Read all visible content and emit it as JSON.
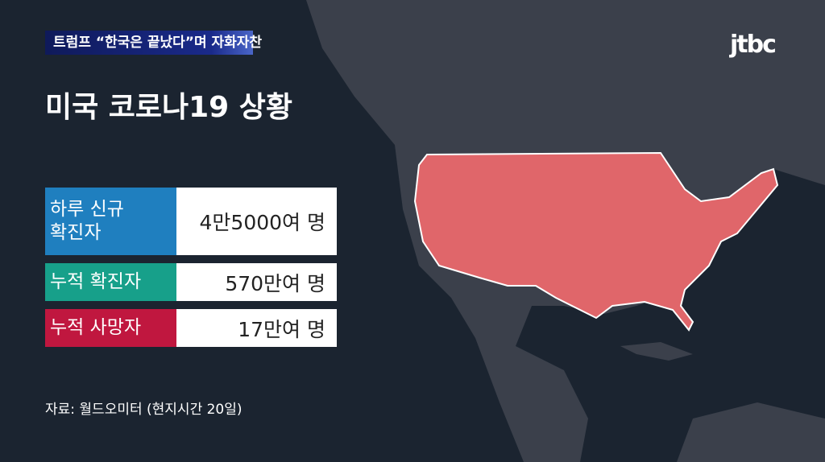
{
  "ticker": {
    "headline": "트럼프 “한국은 끝났다”며 자화자찬"
  },
  "broadcaster": {
    "logo_text": "jtbc"
  },
  "title": "미국 코로나19 상황",
  "stats": [
    {
      "label": "하루 신규 확진자",
      "value": "4만5000여 명",
      "color": "#1f7fbf"
    },
    {
      "label": "누적 확진자",
      "value": "570만여 명",
      "color": "#17a08a"
    },
    {
      "label": "누적 사망자",
      "value": "17만여 명",
      "color": "#c0173f"
    }
  ],
  "source": "자료: 월드오미터 (현지시간 20일)",
  "map": {
    "highlighted_region": "United States",
    "highlight_color": "#e0666a",
    "land_color": "#3b404b",
    "ocean_color": "#1b2430"
  }
}
